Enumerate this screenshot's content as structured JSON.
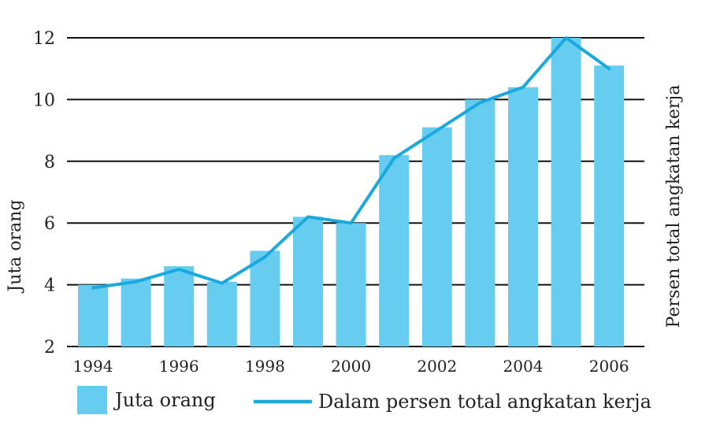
{
  "chart_data": {
    "type": "bar",
    "title": "",
    "ylabel": "Juta orang",
    "y2label": "Persen total angkatan kerja",
    "ylim": [
      2,
      12
    ],
    "yticks": [
      2,
      4,
      6,
      8,
      10,
      12
    ],
    "x": [
      1994,
      1995,
      1996,
      1997,
      1998,
      1999,
      2000,
      2001,
      2002,
      2003,
      2004,
      2005,
      2006
    ],
    "xtick_labels": [
      "1994",
      "1996",
      "1998",
      "2000",
      "2002",
      "2004",
      "2006"
    ],
    "grid": true,
    "legend_placement": "bottom",
    "series": [
      {
        "name": "Juta orang",
        "type": "bar",
        "color": "#66CCF0",
        "values": [
          4.0,
          4.2,
          4.6,
          4.1,
          5.1,
          6.2,
          6.0,
          8.2,
          9.1,
          10.0,
          10.4,
          12.0,
          11.1
        ]
      },
      {
        "name": "Dalam persen total angkatan kerja",
        "type": "line",
        "color": "#19A9DF",
        "values": [
          3.9,
          4.1,
          4.5,
          4.05,
          4.9,
          6.2,
          6.0,
          8.1,
          9.0,
          9.9,
          10.4,
          12.0,
          11.0
        ]
      }
    ]
  }
}
